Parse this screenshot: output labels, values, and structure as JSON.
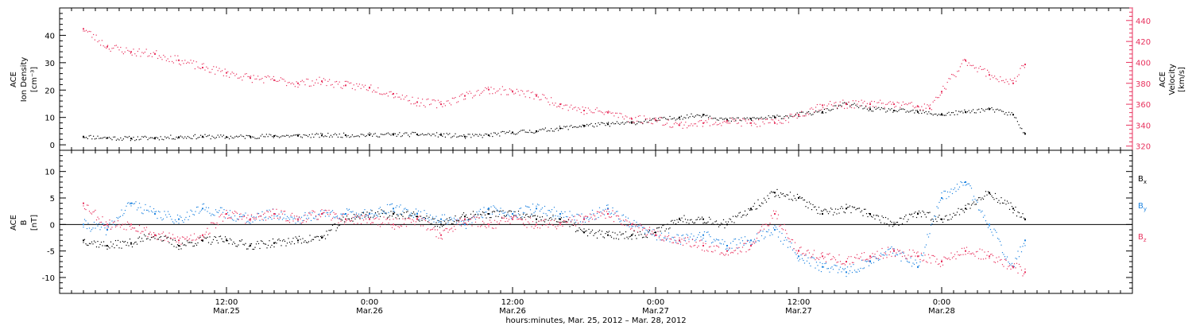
{
  "colors": {
    "axis": "#000000",
    "black_series": "#000000",
    "red_series": "#e8325e",
    "blue_series": "#1f84e0",
    "velocity_axis": "#e8325e"
  },
  "chart_data": [
    {
      "type": "scatter",
      "panel": "top",
      "ylabel_lines": [
        "ACE",
        "Ion Density",
        "[cm⁻³]"
      ],
      "ylim": [
        -2,
        50
      ],
      "yticks": [
        0,
        10,
        20,
        30,
        40
      ],
      "ytick_labels": [
        "0",
        "10",
        "20",
        "30",
        "40"
      ],
      "y2label_lines": [
        "ACE",
        "Velocity",
        "[km/s]"
      ],
      "y2lim": [
        316,
        452
      ],
      "y2ticks": [
        320,
        340,
        360,
        380,
        400,
        420,
        440
      ],
      "y2tick_labels": [
        "320",
        "340",
        "360",
        "380",
        "400",
        "420",
        "440"
      ],
      "series": [
        {
          "color_key": "black_series",
          "axis": "left",
          "x_hours": [
            0,
            2,
            4,
            6,
            8,
            10,
            12,
            14,
            16,
            18,
            20,
            22,
            24,
            26,
            28,
            30,
            32,
            34,
            36,
            38,
            40,
            42,
            44,
            46,
            48,
            50,
            52,
            54,
            56,
            58,
            60,
            62,
            64,
            66,
            68,
            70,
            72,
            74,
            76,
            78,
            79
          ],
          "values": [
            3,
            2.5,
            2.3,
            2.5,
            2.8,
            3,
            2.8,
            3,
            3.2,
            3.3,
            3.4,
            3.5,
            3.6,
            3.7,
            3.8,
            3.6,
            3,
            3.5,
            4.5,
            5,
            6,
            7,
            7.5,
            8,
            9,
            10,
            11,
            9,
            9.5,
            10,
            11,
            12,
            15,
            13,
            12.5,
            12,
            11,
            12,
            13,
            11,
            4
          ]
        },
        {
          "color_key": "red_series",
          "axis": "right",
          "x_hours": [
            0,
            2,
            4,
            6,
            8,
            10,
            12,
            14,
            16,
            18,
            20,
            22,
            24,
            26,
            28,
            30,
            32,
            34,
            36,
            38,
            40,
            42,
            44,
            46,
            48,
            50,
            52,
            54,
            56,
            58,
            60,
            62,
            64,
            66,
            68,
            70,
            71,
            72,
            74,
            76,
            78,
            79
          ],
          "values": [
            432,
            415,
            410,
            408,
            402,
            395,
            390,
            385,
            383,
            380,
            382,
            378,
            376,
            370,
            362,
            360,
            368,
            374,
            372,
            368,
            360,
            354,
            352,
            346,
            345,
            340,
            342,
            344,
            342,
            342,
            350,
            359,
            360,
            360,
            360,
            358,
            356,
            372,
            402,
            388,
            380,
            398
          ]
        }
      ]
    },
    {
      "type": "scatter",
      "panel": "bottom",
      "ylabel_lines": [
        "ACE",
        "B",
        "[nT]"
      ],
      "ylim": [
        -13,
        14
      ],
      "yticks": [
        -10,
        -5,
        0,
        5,
        10
      ],
      "ytick_labels": [
        "-10",
        "-5",
        "0",
        "5",
        "10"
      ],
      "zero_line": true,
      "series": [
        {
          "name": "B_x",
          "label_main": "B",
          "label_sub": "x",
          "color_key": "black_series",
          "x_hours": [
            0,
            2,
            4,
            6,
            8,
            10,
            12,
            14,
            16,
            18,
            20,
            22,
            24,
            26,
            28,
            30,
            32,
            34,
            36,
            38,
            40,
            42,
            44,
            46,
            48,
            50,
            52,
            54,
            56,
            58,
            60,
            62,
            64,
            66,
            68,
            70,
            72,
            74,
            76,
            78,
            79
          ],
          "values": [
            -3,
            -4,
            -3.5,
            -2,
            -4,
            -3,
            -3,
            -4,
            -3.5,
            -3,
            -2.5,
            1,
            2,
            2,
            1.5,
            0,
            1.5,
            2,
            2,
            1,
            1,
            -1.5,
            -2,
            -2,
            -1.5,
            1,
            1,
            0,
            3,
            6,
            5,
            2,
            3,
            2,
            0,
            2,
            1,
            3,
            6,
            3,
            1
          ]
        },
        {
          "name": "B_y",
          "label_main": "B",
          "label_sub": "y",
          "color_key": "blue_series",
          "x_hours": [
            0,
            2,
            4,
            6,
            8,
            10,
            12,
            14,
            16,
            18,
            20,
            22,
            24,
            26,
            28,
            30,
            32,
            34,
            36,
            38,
            40,
            42,
            44,
            46,
            48,
            50,
            52,
            54,
            56,
            58,
            60,
            62,
            64,
            66,
            68,
            70,
            72,
            74,
            76,
            78,
            79
          ],
          "values": [
            0,
            -1,
            4,
            2,
            1,
            3,
            2,
            1,
            2,
            1,
            2,
            2,
            2,
            3,
            2,
            1,
            0,
            3,
            2,
            3,
            2,
            1,
            3,
            0,
            -2,
            -3,
            -2,
            -4,
            -3,
            -1,
            -6,
            -8,
            -9,
            -7,
            -5,
            -8,
            5,
            8,
            0,
            -8,
            -3
          ]
        },
        {
          "name": "B_z",
          "label_main": "B",
          "label_sub": "z",
          "color_key": "red_series",
          "x_hours": [
            0,
            2,
            4,
            6,
            8,
            10,
            12,
            14,
            16,
            18,
            20,
            22,
            24,
            26,
            28,
            30,
            32,
            34,
            36,
            38,
            40,
            42,
            44,
            46,
            48,
            50,
            52,
            54,
            56,
            58,
            60,
            62,
            64,
            66,
            68,
            70,
            72,
            74,
            76,
            78,
            79
          ],
          "values": [
            4,
            0,
            0,
            -2,
            -3,
            -2,
            2,
            1,
            2,
            1,
            2,
            1,
            1,
            0,
            1,
            -2,
            1,
            0,
            1,
            0,
            0,
            1,
            2,
            0,
            -2,
            -3,
            -4,
            -5,
            -4,
            2,
            -5,
            -6,
            -7,
            -6,
            -5,
            -6,
            -7,
            -5,
            -6,
            -8,
            -9
          ]
        }
      ]
    }
  ],
  "x_axis": {
    "range_hours": [
      -2,
      88
    ],
    "minor_tick_step_hours": 1,
    "major_ticks": [
      {
        "hour": 12,
        "time": "12:00",
        "date": "Mar.25"
      },
      {
        "hour": 24,
        "time": "0:00",
        "date": "Mar.26"
      },
      {
        "hour": 36,
        "time": "12:00",
        "date": "Mar.26"
      },
      {
        "hour": 48,
        "time": "0:00",
        "date": "Mar.27"
      },
      {
        "hour": 60,
        "time": "12:00",
        "date": "Mar.27"
      },
      {
        "hour": 72,
        "time": "0:00",
        "date": "Mar.28"
      }
    ],
    "title": "hours:minutes, Mar. 25, 2012 – Mar. 28, 2012"
  }
}
